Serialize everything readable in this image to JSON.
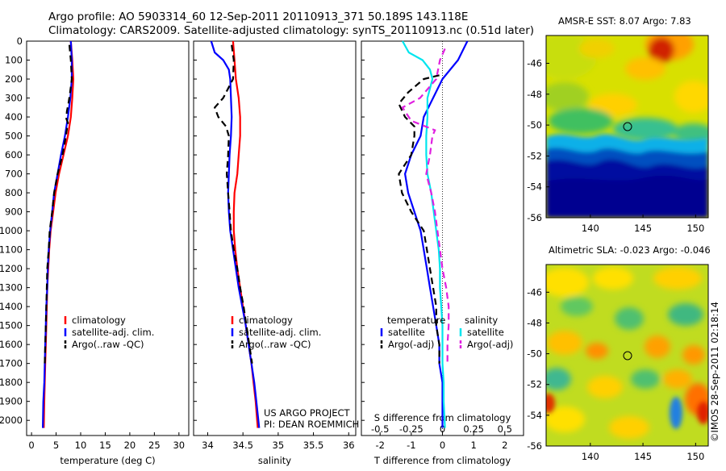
{
  "header": {
    "line1": "Argo profile: AO 5903314_60 12-Sep-2011 20110913_371 50.189S 143.118E",
    "line2": "Climatology: CARS2009. Satellite-adjusted climatology: synTS_20110913.nc (0.51d later)"
  },
  "project": {
    "line1": "US ARGO PROJECT",
    "line2": "PI: DEAN ROEMMICH"
  },
  "footer_stamp": "©IMOS 28-Sep-2011 02:18:14",
  "colors": {
    "climatology": "#ff0000",
    "satellite": "#0000ff",
    "argo": "#000000",
    "sal_satellite": "#00e5ee",
    "sal_argo": "#e020e0"
  },
  "chart_data": [
    {
      "type": "line",
      "name": "temperature_profile",
      "xlabel": "temperature (deg C)",
      "xlim": [
        -1,
        32
      ],
      "ylim": [
        2080,
        0
      ],
      "xticks": [
        0,
        5,
        10,
        15,
        20,
        25,
        30
      ],
      "yticks": [
        0,
        100,
        200,
        300,
        400,
        500,
        600,
        700,
        800,
        900,
        1000,
        1100,
        1200,
        1300,
        1400,
        1500,
        1600,
        1700,
        1800,
        1900,
        2000
      ],
      "legend": [
        {
          "label": "climatology",
          "color": "#ff0000",
          "dash": false
        },
        {
          "label": "satellite-adj. clim.",
          "color": "#0000ff",
          "dash": false
        },
        {
          "label": "Argo(..raw -QC)",
          "color": "#000000",
          "dash": true
        }
      ],
      "series": [
        {
          "key": "climatology",
          "color": "#ff0000",
          "dash": false,
          "points": [
            [
              8.0,
              0
            ],
            [
              8.3,
              100
            ],
            [
              8.5,
              200
            ],
            [
              8.3,
              300
            ],
            [
              8.0,
              400
            ],
            [
              7.4,
              500
            ],
            [
              6.5,
              600
            ],
            [
              5.6,
              700
            ],
            [
              4.9,
              800
            ],
            [
              4.4,
              900
            ],
            [
              3.9,
              1000
            ],
            [
              3.6,
              1100
            ],
            [
              3.4,
              1200
            ],
            [
              3.2,
              1300
            ],
            [
              3.1,
              1400
            ],
            [
              3.0,
              1500
            ],
            [
              2.9,
              1600
            ],
            [
              2.8,
              1700
            ],
            [
              2.7,
              1800
            ],
            [
              2.6,
              1900
            ],
            [
              2.5,
              2040
            ]
          ]
        },
        {
          "key": "satellite",
          "color": "#0000ff",
          "dash": false,
          "points": [
            [
              8.0,
              0
            ],
            [
              8.2,
              100
            ],
            [
              8.2,
              200
            ],
            [
              7.9,
              300
            ],
            [
              7.4,
              400
            ],
            [
              6.8,
              500
            ],
            [
              6.0,
              600
            ],
            [
              5.3,
              700
            ],
            [
              4.6,
              800
            ],
            [
              4.2,
              900
            ],
            [
              3.8,
              1000
            ],
            [
              3.5,
              1100
            ],
            [
              3.3,
              1200
            ],
            [
              3.2,
              1300
            ],
            [
              3.0,
              1400
            ],
            [
              2.9,
              1500
            ],
            [
              2.8,
              1600
            ],
            [
              2.7,
              1700
            ],
            [
              2.6,
              1800
            ],
            [
              2.4,
              1900
            ],
            [
              2.3,
              2040
            ]
          ]
        },
        {
          "key": "argo",
          "color": "#000000",
          "dash": true,
          "points": [
            [
              7.7,
              20
            ],
            [
              8.0,
              100
            ],
            [
              8.2,
              200
            ],
            [
              7.8,
              280
            ],
            [
              7.5,
              330
            ],
            [
              7.2,
              370
            ],
            [
              7.1,
              410
            ],
            [
              7.4,
              430
            ],
            [
              7.0,
              500
            ],
            [
              6.3,
              600
            ],
            [
              5.3,
              700
            ],
            [
              4.6,
              800
            ],
            [
              4.2,
              900
            ],
            [
              3.7,
              1000
            ],
            [
              3.5,
              1100
            ],
            [
              3.2,
              1200
            ],
            [
              3.1,
              1300
            ],
            [
              3.0,
              1400
            ],
            [
              2.9,
              1500
            ],
            [
              2.8,
              1600
            ],
            [
              2.7,
              1700
            ]
          ]
        }
      ]
    },
    {
      "type": "line",
      "name": "salinity_profile",
      "xlabel": "salinity",
      "xlim": [
        33.8,
        36.1
      ],
      "ylim": [
        2080,
        0
      ],
      "xticks": [
        34,
        34.5,
        35,
        35.5,
        36
      ],
      "legend": [
        {
          "label": "climatology",
          "color": "#ff0000",
          "dash": false
        },
        {
          "label": "satellite-adj. clim.",
          "color": "#0000ff",
          "dash": false
        },
        {
          "label": "Argo(..raw -QC)",
          "color": "#000000",
          "dash": true
        }
      ],
      "series": [
        {
          "key": "climatology",
          "color": "#ff0000",
          "dash": false,
          "points": [
            [
              34.36,
              0
            ],
            [
              34.38,
              100
            ],
            [
              34.4,
              200
            ],
            [
              34.44,
              300
            ],
            [
              34.46,
              400
            ],
            [
              34.46,
              500
            ],
            [
              34.44,
              600
            ],
            [
              34.42,
              700
            ],
            [
              34.38,
              800
            ],
            [
              34.37,
              900
            ],
            [
              34.37,
              1000
            ],
            [
              34.39,
              1100
            ],
            [
              34.42,
              1200
            ],
            [
              34.46,
              1300
            ],
            [
              34.5,
              1400
            ],
            [
              34.54,
              1500
            ],
            [
              34.58,
              1600
            ],
            [
              34.62,
              1700
            ],
            [
              34.65,
              1800
            ],
            [
              34.68,
              1900
            ],
            [
              34.71,
              2040
            ]
          ]
        },
        {
          "key": "satellite",
          "color": "#0000ff",
          "dash": false,
          "points": [
            [
              34.05,
              0
            ],
            [
              34.1,
              60
            ],
            [
              34.22,
              100
            ],
            [
              34.3,
              150
            ],
            [
              34.32,
              200
            ],
            [
              34.33,
              300
            ],
            [
              34.34,
              400
            ],
            [
              34.33,
              500
            ],
            [
              34.31,
              600
            ],
            [
              34.3,
              700
            ],
            [
              34.29,
              800
            ],
            [
              34.3,
              900
            ],
            [
              34.32,
              1000
            ],
            [
              34.36,
              1100
            ],
            [
              34.4,
              1200
            ],
            [
              34.44,
              1300
            ],
            [
              34.49,
              1400
            ],
            [
              34.54,
              1500
            ],
            [
              34.58,
              1600
            ],
            [
              34.62,
              1700
            ],
            [
              34.66,
              1800
            ],
            [
              34.69,
              1900
            ],
            [
              34.73,
              2040
            ]
          ]
        },
        {
          "key": "argo",
          "color": "#000000",
          "dash": true,
          "points": [
            [
              34.34,
              20
            ],
            [
              34.37,
              100
            ],
            [
              34.36,
              200
            ],
            [
              34.22,
              300
            ],
            [
              34.1,
              350
            ],
            [
              34.15,
              400
            ],
            [
              34.26,
              450
            ],
            [
              34.3,
              500
            ],
            [
              34.29,
              600
            ],
            [
              34.27,
              700
            ],
            [
              34.29,
              800
            ],
            [
              34.31,
              900
            ],
            [
              34.33,
              1000
            ],
            [
              34.37,
              1100
            ],
            [
              34.42,
              1200
            ],
            [
              34.46,
              1300
            ],
            [
              34.51,
              1400
            ],
            [
              34.55,
              1500
            ],
            [
              34.59,
              1600
            ],
            [
              34.63,
              1700
            ]
          ]
        }
      ]
    },
    {
      "type": "line",
      "name": "difference_profile",
      "xlabel": "T difference from climatology",
      "xlabel_top": "S difference from climatology",
      "xlim": [
        -2.6,
        2.6
      ],
      "ylim": [
        2080,
        0
      ],
      "xticks": [
        -2,
        -1,
        0,
        1,
        2
      ],
      "sticks": [
        -0.5,
        -0.25,
        0,
        0.25,
        0.5
      ],
      "slim": [
        -0.65,
        0.65
      ],
      "legend_t_title": "temperature",
      "legend_s_title": "salinity",
      "legend": [
        {
          "label": "satellite",
          "color": "#0000ff",
          "dash": false,
          "col": "t"
        },
        {
          "label": "Argo(-adj)",
          "color": "#000000",
          "dash": true,
          "col": "t"
        },
        {
          "label": "satellite",
          "color": "#00e5ee",
          "dash": false,
          "col": "s"
        },
        {
          "label": "Argo(-adj)",
          "color": "#e020e0",
          "dash": true,
          "col": "s"
        }
      ],
      "series": [
        {
          "key": "t_satellite",
          "color": "#0000ff",
          "dash": false,
          "points": [
            [
              0.8,
              0
            ],
            [
              0.5,
              100
            ],
            [
              0.0,
              200
            ],
            [
              -0.3,
              300
            ],
            [
              -0.6,
              400
            ],
            [
              -0.7,
              500
            ],
            [
              -1.0,
              600
            ],
            [
              -1.2,
              700
            ],
            [
              -1.1,
              800
            ],
            [
              -0.9,
              900
            ],
            [
              -0.7,
              1000
            ],
            [
              -0.6,
              1100
            ],
            [
              -0.5,
              1200
            ],
            [
              -0.4,
              1300
            ],
            [
              -0.3,
              1400
            ],
            [
              -0.2,
              1500
            ],
            [
              -0.1,
              1600
            ],
            [
              -0.1,
              1700
            ],
            [
              0.0,
              1800
            ],
            [
              0.0,
              1900
            ],
            [
              0.0,
              2040
            ]
          ]
        },
        {
          "key": "t_argo",
          "color": "#000000",
          "dash": true,
          "points": [
            [
              -0.1,
              180
            ],
            [
              -0.6,
              200
            ],
            [
              -1.1,
              270
            ],
            [
              -1.4,
              330
            ],
            [
              -1.2,
              400
            ],
            [
              -0.9,
              450
            ],
            [
              -0.9,
              500
            ],
            [
              -1.0,
              600
            ],
            [
              -1.4,
              700
            ],
            [
              -1.3,
              800
            ],
            [
              -1.0,
              900
            ],
            [
              -0.6,
              1000
            ],
            [
              -0.5,
              1100
            ],
            [
              -0.4,
              1200
            ],
            [
              -0.3,
              1300
            ],
            [
              -0.2,
              1400
            ],
            [
              -0.2,
              1500
            ],
            [
              -0.1,
              1600
            ],
            [
              -0.1,
              1700
            ]
          ]
        },
        {
          "key": "s_satellite",
          "color": "#00e5ee",
          "dash": false,
          "points": [
            [
              -0.32,
              0
            ],
            [
              -0.27,
              60
            ],
            [
              -0.16,
              100
            ],
            [
              -0.1,
              150
            ],
            [
              -0.08,
              200
            ],
            [
              -0.12,
              300
            ],
            [
              -0.12,
              400
            ],
            [
              -0.13,
              500
            ],
            [
              -0.13,
              600
            ],
            [
              -0.12,
              700
            ],
            [
              -0.09,
              800
            ],
            [
              -0.07,
              900
            ],
            [
              -0.05,
              1000
            ],
            [
              -0.03,
              1100
            ],
            [
              -0.02,
              1200
            ],
            [
              -0.02,
              1300
            ],
            [
              -0.01,
              1400
            ],
            [
              0.0,
              1500
            ],
            [
              0.0,
              1600
            ],
            [
              0.0,
              1700
            ],
            [
              0.01,
              1800
            ],
            [
              0.01,
              1900
            ],
            [
              0.02,
              2040
            ]
          ]
        },
        {
          "key": "s_argo",
          "color": "#e020e0",
          "dash": true,
          "points": [
            [
              0.02,
              40
            ],
            [
              -0.02,
              100
            ],
            [
              -0.05,
              200
            ],
            [
              -0.18,
              300
            ],
            [
              -0.32,
              350
            ],
            [
              -0.25,
              420
            ],
            [
              -0.06,
              470
            ],
            [
              -0.08,
              500
            ],
            [
              -0.1,
              600
            ],
            [
              -0.13,
              700
            ],
            [
              -0.09,
              800
            ],
            [
              -0.06,
              900
            ],
            [
              -0.04,
              1000
            ],
            [
              -0.02,
              1100
            ],
            [
              0.0,
              1200
            ],
            [
              0.03,
              1300
            ],
            [
              0.05,
              1400
            ],
            [
              0.05,
              1500
            ],
            [
              0.04,
              1600
            ],
            [
              0.04,
              1700
            ]
          ]
        }
      ]
    },
    {
      "type": "heatmap",
      "name": "sst_map",
      "title": "AMSR-E SST: 8.07 Argo: 7.83",
      "xlim": [
        135.8,
        151.2
      ],
      "ylim": [
        -56,
        -44.2
      ],
      "xticks": [
        140,
        145,
        150
      ],
      "yticks": [
        -46,
        -48,
        -50,
        -52,
        -54,
        -56
      ],
      "marker": [
        143.118,
        -50.189
      ]
    },
    {
      "type": "heatmap",
      "name": "sla_map",
      "title": "Altimetric SLA: -0.023 Argo: -0.046",
      "xlim": [
        135.8,
        151.2
      ],
      "ylim": [
        -56,
        -44.2
      ],
      "xticks": [
        140,
        145,
        150
      ],
      "yticks": [
        -46,
        -48,
        -50,
        -52,
        -54,
        -56
      ],
      "marker": [
        143.118,
        -50.189
      ]
    }
  ]
}
